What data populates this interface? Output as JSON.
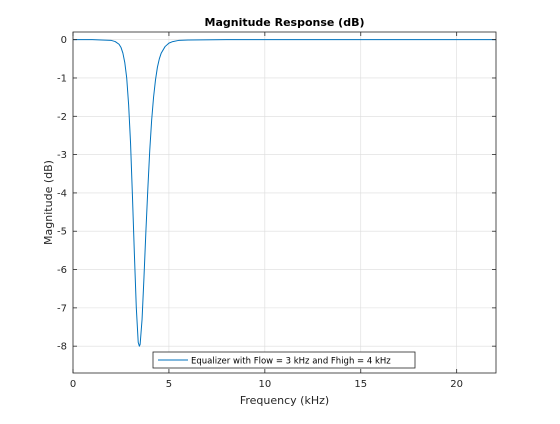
{
  "chart_data": {
    "type": "line",
    "title": "Magnitude Response (dB)",
    "xlabel": "Frequency (kHz)",
    "ylabel": "Magnitude (dB)",
    "xlim": [
      0,
      22.05
    ],
    "ylim": [
      -8.7,
      0.2
    ],
    "xticks": [
      0,
      5,
      10,
      15,
      20
    ],
    "yticks": [
      0,
      -1,
      -2,
      -3,
      -4,
      -5,
      -6,
      -7,
      -8
    ],
    "grid": true,
    "legend_position": "bottom-center",
    "series": [
      {
        "name": "Equalizer with Flow = 3 kHz and Fhigh = 4 kHz",
        "color": "#0072BD",
        "x": [
          0,
          1,
          2,
          2.2,
          2.4,
          2.5,
          2.6,
          2.7,
          2.8,
          2.9,
          3.0,
          3.1,
          3.2,
          3.3,
          3.4,
          3.46,
          3.5,
          3.6,
          3.7,
          3.8,
          3.9,
          4.0,
          4.1,
          4.2,
          4.3,
          4.4,
          4.5,
          4.6,
          4.8,
          5.0,
          5.2,
          5.5,
          6,
          8,
          10,
          12,
          15,
          18,
          20,
          22.05
        ],
        "y": [
          0,
          0,
          -0.02,
          -0.05,
          -0.12,
          -0.2,
          -0.35,
          -0.6,
          -1.0,
          -1.7,
          -2.7,
          -4.1,
          -5.6,
          -7.0,
          -7.9,
          -8.0,
          -7.95,
          -7.3,
          -6.2,
          -5.0,
          -3.9,
          -2.9,
          -2.1,
          -1.5,
          -1.05,
          -0.72,
          -0.5,
          -0.35,
          -0.18,
          -0.09,
          -0.05,
          -0.02,
          -0.01,
          0,
          0,
          0,
          0,
          0,
          0,
          0
        ]
      }
    ]
  }
}
